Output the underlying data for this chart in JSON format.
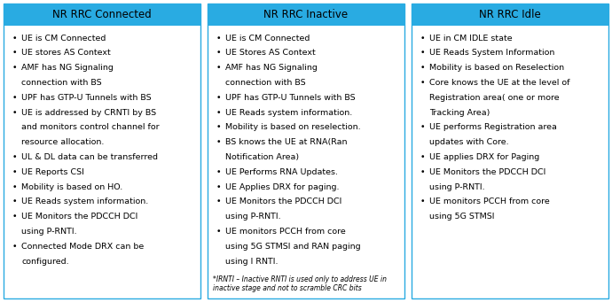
{
  "columns": [
    {
      "title": "NR RRC Connected",
      "header_color": "#29ABE2",
      "items": [
        "UE is CM Connected",
        "UE stores AS Context",
        "AMF has NG Signaling\nconnection with BS",
        "UPF has GTP-U Tunnels with BS",
        "UE is addressed by CRNTI by BS\nand monitors control channel for\nresource allocation.",
        "UL & DL data can be transferred",
        "UE Reports CSI",
        "Mobility is based on HO.",
        "UE Reads system information.",
        "UE Monitors the PDCCH DCI\nusing P-RNTI.",
        "Connected Mode DRX can be\nconfigured."
      ],
      "footnote": ""
    },
    {
      "title": "NR RRC Inactive",
      "header_color": "#29ABE2",
      "items": [
        "UE is CM Connected",
        "UE Stores AS Context",
        "AMF has NG Signaling\nconnection with BS",
        "UPF has GTP-U Tunnels with BS",
        "UE Reads system information.",
        "Mobility is based on reselection.",
        "BS knows the UE at RNA(Ran\nNotification Area)",
        "UE Performs RNA Updates.",
        "UE Applies DRX for paging.",
        "UE Monitors the PDCCH DCI\nusing P-RNTI.",
        "UE monitors PCCH from core\nusing 5G STMSI and RAN paging\nusing I RNTI."
      ],
      "footnote": "*IRNTI – Inactive RNTI is used only to address UE in\ninactive stage and not to scramble CRC bits"
    },
    {
      "title": "NR RRC Idle",
      "header_color": "#29ABE2",
      "items": [
        "UE in CM IDLE state",
        "UE Reads System Information",
        "Mobility is based on Reselection",
        "Core knows the UE at the level of\nRegistration area( one or more\nTracking Area)",
        "UE performs Registration area\nupdates with Core.",
        "UE applies DRX for Paging",
        "UE Monitors the PDCCH DCI\nusing P-RNTI.",
        "UE monitors PCCH from core\nusing 5G STMSI"
      ],
      "footnote": ""
    }
  ],
  "background_color": "#FFFFFF",
  "border_color": "#29ABE2",
  "cell_bg_color": "#FFFFFF",
  "header_text_color": "#000000",
  "body_text_color": "#000000",
  "title_fontsize": 8.5,
  "body_fontsize": 6.8,
  "footnote_fontsize": 5.5,
  "fig_width": 6.9,
  "fig_height": 3.41,
  "dpi": 100
}
